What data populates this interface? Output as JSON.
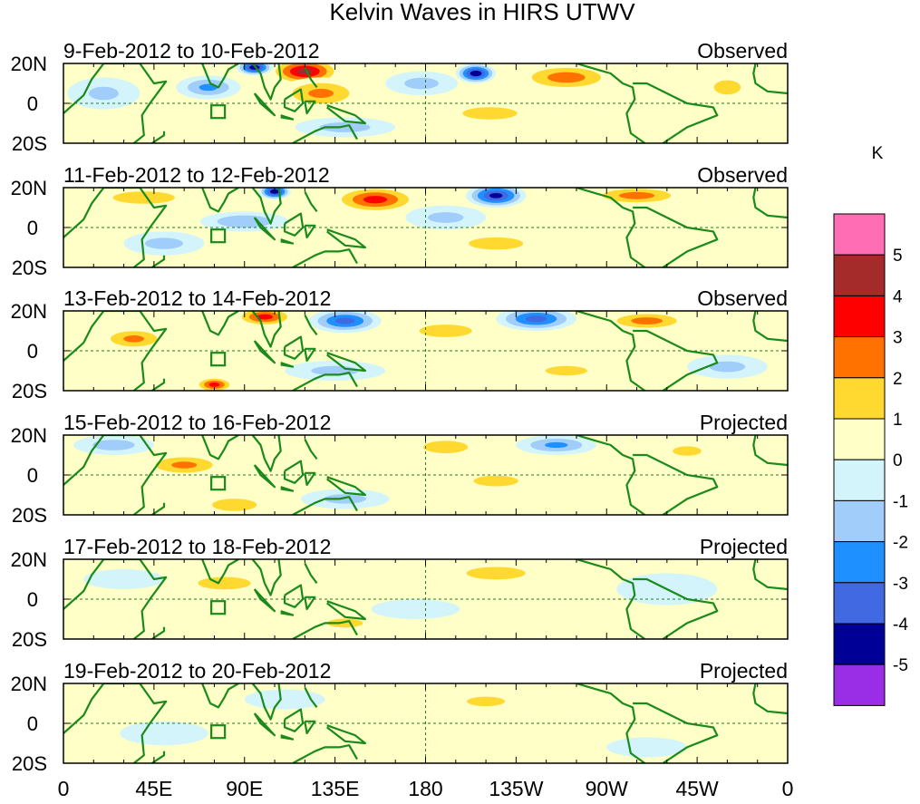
{
  "chart_data": {
    "type": "heatmap",
    "title": "Kelvin Waves in HIRS UTWV",
    "colorbar": {
      "unit": "K",
      "ticks": [
        "5",
        "4",
        "3",
        "2",
        "1",
        "0",
        "-1",
        "-2",
        "-3",
        "-4",
        "-5"
      ],
      "bins": [
        {
          "range": "> 5",
          "color": "#ff6eb4"
        },
        {
          "range": "4 to 5",
          "color": "#a52a2a"
        },
        {
          "range": "3 to 4",
          "color": "#ff0000"
        },
        {
          "range": "2 to 3",
          "color": "#ff7200"
        },
        {
          "range": "1 to 2",
          "color": "#ffd92f"
        },
        {
          "range": "0 to 1",
          "color": "#ffffc8"
        },
        {
          "range": "-1 to 0",
          "color": "#d2f4fa"
        },
        {
          "range": "-2 to -1",
          "color": "#a0cdfa"
        },
        {
          "range": "-3 to -2",
          "color": "#1e90ff"
        },
        {
          "range": "-4 to -3",
          "color": "#4169e1"
        },
        {
          "range": "-5 to -4",
          "color": "#000096"
        },
        {
          "range": "< -5",
          "color": "#9a2ee6"
        }
      ]
    },
    "x_ticks": [
      "0",
      "45E",
      "90E",
      "135E",
      "180",
      "135W",
      "90W",
      "45W",
      "0"
    ],
    "y_ticks": [
      "20N",
      "0",
      "20S"
    ],
    "panels": [
      {
        "dates": "9-Feb-2012 to 10-Feb-2012",
        "status": "Observed",
        "blobs": [
          {
            "lon": 120,
            "lat": 16,
            "w": 18,
            "h": 7,
            "v": 4.5
          },
          {
            "lon": 95,
            "lat": 18,
            "w": 9,
            "h": 4,
            "v": -5
          },
          {
            "lon": 205,
            "lat": 15,
            "w": 10,
            "h": 5,
            "v": -5
          },
          {
            "lon": 250,
            "lat": 13,
            "w": 25,
            "h": 7,
            "v": 2.6
          },
          {
            "lon": 128,
            "lat": 5,
            "w": 22,
            "h": 8,
            "v": 2.2
          },
          {
            "lon": 72,
            "lat": 8,
            "w": 16,
            "h": 6,
            "v": -2.2
          },
          {
            "lon": 212,
            "lat": -5,
            "w": 22,
            "h": 5,
            "v": 2
          },
          {
            "lon": 140,
            "lat": -12,
            "w": 25,
            "h": 5,
            "v": -1.4
          },
          {
            "lon": 20,
            "lat": 5,
            "w": 18,
            "h": 8,
            "v": -1.1
          },
          {
            "lon": 330,
            "lat": 8,
            "w": 15,
            "h": 8,
            "v": 1.2
          },
          {
            "lon": 178,
            "lat": 10,
            "w": 18,
            "h": 6,
            "v": -1.3
          }
        ]
      },
      {
        "dates": "11-Feb-2012 to 12-Feb-2012",
        "status": "Observed",
        "blobs": [
          {
            "lon": 155,
            "lat": 14,
            "w": 22,
            "h": 7,
            "v": 3.5
          },
          {
            "lon": 215,
            "lat": 16,
            "w": 15,
            "h": 6,
            "v": -4.5
          },
          {
            "lon": 105,
            "lat": 18,
            "w": 8,
            "h": 4,
            "v": -5
          },
          {
            "lon": 285,
            "lat": 16,
            "w": 25,
            "h": 5,
            "v": 2.5
          },
          {
            "lon": 90,
            "lat": 3,
            "w": 22,
            "h": 5,
            "v": -2
          },
          {
            "lon": 215,
            "lat": -8,
            "w": 22,
            "h": 5,
            "v": 2
          },
          {
            "lon": 40,
            "lat": 15,
            "w": 25,
            "h": 5,
            "v": 2
          },
          {
            "lon": 50,
            "lat": -8,
            "w": 20,
            "h": 6,
            "v": -1.3
          },
          {
            "lon": 190,
            "lat": 5,
            "w": 20,
            "h": 6,
            "v": -1.2
          }
        ]
      },
      {
        "dates": "13-Feb-2012 to 14-Feb-2012",
        "status": "Observed",
        "blobs": [
          {
            "lon": 100,
            "lat": 17,
            "w": 15,
            "h": 5,
            "v": 3.5
          },
          {
            "lon": 140,
            "lat": 15,
            "w": 18,
            "h": 6,
            "v": -3.5
          },
          {
            "lon": 235,
            "lat": 16,
            "w": 20,
            "h": 6,
            "v": -3.5
          },
          {
            "lon": 290,
            "lat": 15,
            "w": 22,
            "h": 5,
            "v": 2.5
          },
          {
            "lon": 35,
            "lat": 6,
            "w": 18,
            "h": 6,
            "v": 2.2
          },
          {
            "lon": 75,
            "lat": -17,
            "w": 10,
            "h": 4,
            "v": 3.5
          },
          {
            "lon": 190,
            "lat": 10,
            "w": 25,
            "h": 6,
            "v": 1.5
          },
          {
            "lon": 135,
            "lat": -10,
            "w": 25,
            "h": 5,
            "v": -1.3
          },
          {
            "lon": 250,
            "lat": -10,
            "w": 22,
            "h": 5,
            "v": 1.3
          },
          {
            "lon": 330,
            "lat": -8,
            "w": 20,
            "h": 6,
            "v": -1.2
          }
        ]
      },
      {
        "dates": "15-Feb-2012 to 16-Feb-2012",
        "status": "Projected",
        "blobs": [
          {
            "lon": 60,
            "lat": 5,
            "w": 22,
            "h": 6,
            "v": 2.2
          },
          {
            "lon": 190,
            "lat": 14,
            "w": 18,
            "h": 5,
            "v": 2
          },
          {
            "lon": 245,
            "lat": 15,
            "w": 20,
            "h": 5,
            "v": -2.2
          },
          {
            "lon": 25,
            "lat": 15,
            "w": 20,
            "h": 5,
            "v": -1.5
          },
          {
            "lon": 85,
            "lat": -15,
            "w": 18,
            "h": 5,
            "v": 2
          },
          {
            "lon": 140,
            "lat": -12,
            "w": 22,
            "h": 5,
            "v": -1.3
          },
          {
            "lon": 310,
            "lat": 12,
            "w": 15,
            "h": 5,
            "v": 1.3
          },
          {
            "lon": 215,
            "lat": -3,
            "w": 25,
            "h": 6,
            "v": 1.2
          }
        ]
      },
      {
        "dates": "17-Feb-2012 to 18-Feb-2012",
        "status": "Projected",
        "blobs": [
          {
            "lon": 80,
            "lat": 8,
            "w": 25,
            "h": 6,
            "v": 1.5
          },
          {
            "lon": 215,
            "lat": 13,
            "w": 28,
            "h": 6,
            "v": 1.5
          },
          {
            "lon": 140,
            "lat": -12,
            "w": 20,
            "h": 5,
            "v": 1.2
          },
          {
            "lon": 30,
            "lat": 10,
            "w": 20,
            "h": 5,
            "v": -0.8
          },
          {
            "lon": 300,
            "lat": 5,
            "w": 25,
            "h": 8,
            "v": -0.8
          },
          {
            "lon": 175,
            "lat": -5,
            "w": 22,
            "h": 5,
            "v": -0.6
          }
        ]
      },
      {
        "dates": "19-Feb-2012 to 20-Feb-2012",
        "status": "Projected",
        "blobs": [
          {
            "lon": 210,
            "lat": 11,
            "w": 20,
            "h": 5,
            "v": 1.3
          },
          {
            "lon": 50,
            "lat": -5,
            "w": 22,
            "h": 6,
            "v": -0.8
          },
          {
            "lon": 150,
            "lat": -8,
            "w": 22,
            "h": 5,
            "v": 0.8
          },
          {
            "lon": 290,
            "lat": -12,
            "w": 20,
            "h": 5,
            "v": -0.7
          },
          {
            "lon": 110,
            "lat": 12,
            "w": 20,
            "h": 5,
            "v": -0.6
          }
        ]
      }
    ]
  }
}
